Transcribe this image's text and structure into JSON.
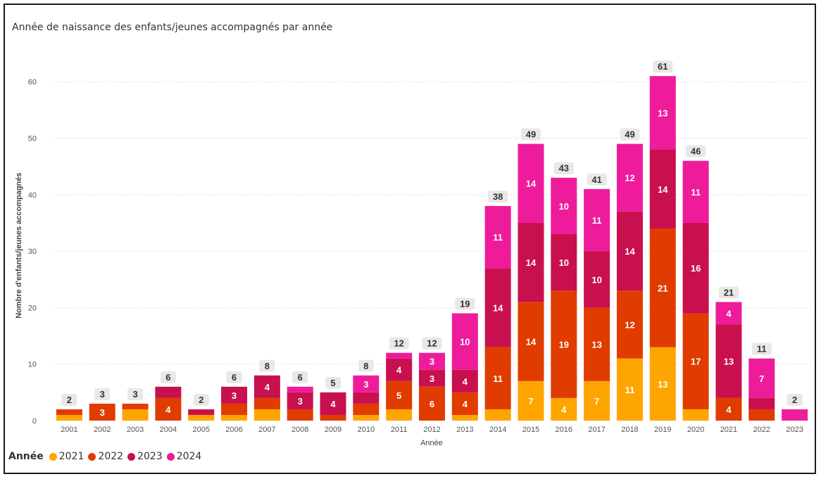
{
  "chart_data": {
    "type": "bar",
    "stacked": true,
    "title": "Année de naissance des enfants/jeunes accompagnés par année",
    "xlabel": "Année",
    "ylabel": "Nombre d'enfants/jeunes accompagnés",
    "ylim": [
      0,
      63
    ],
    "yticks": [
      "0",
      "10",
      "20",
      "30",
      "40",
      "50",
      "60"
    ],
    "grid": true,
    "legend_title": "Année",
    "legend_position": "bottom-left",
    "categories": [
      "2001",
      "2002",
      "2003",
      "2004",
      "2005",
      "2006",
      "2007",
      "2008",
      "2009",
      "2010",
      "2011",
      "2012",
      "2013",
      "2014",
      "2015",
      "2016",
      "2017",
      "2018",
      "2019",
      "2020",
      "2021",
      "2022",
      "2023"
    ],
    "series": [
      {
        "name": "2021",
        "color": "#FFA500",
        "values": [
          1,
          0,
          2,
          0,
          1,
          1,
          2,
          0,
          0,
          1,
          2,
          0,
          1,
          2,
          7,
          4,
          7,
          11,
          13,
          2,
          0,
          0,
          0
        ]
      },
      {
        "name": "2022",
        "color": "#E03C00",
        "values": [
          1,
          3,
          1,
          4,
          0,
          2,
          2,
          2,
          1,
          2,
          5,
          6,
          4,
          11,
          14,
          19,
          13,
          12,
          21,
          17,
          4,
          2,
          0
        ]
      },
      {
        "name": "2023",
        "color": "#C8104F",
        "values": [
          0,
          0,
          0,
          2,
          1,
          3,
          4,
          3,
          4,
          2,
          4,
          3,
          4,
          14,
          14,
          10,
          10,
          14,
          14,
          16,
          13,
          2,
          0
        ]
      },
      {
        "name": "2024",
        "color": "#EE1C9B",
        "values": [
          0,
          0,
          0,
          0,
          0,
          0,
          0,
          1,
          0,
          3,
          1,
          3,
          10,
          11,
          14,
          10,
          11,
          12,
          13,
          11,
          4,
          7,
          2
        ]
      }
    ],
    "segment_labels": [
      [
        "",
        "",
        "",
        "",
        "",
        "",
        "",
        "",
        "",
        "",
        "",
        "",
        "",
        "",
        "7",
        "4",
        "7",
        "11",
        "13",
        "",
        "",
        "",
        ""
      ],
      [
        "",
        "3",
        "",
        "4",
        "",
        "",
        "",
        "",
        "",
        "",
        "5",
        "6",
        "4",
        "11",
        "14",
        "19",
        "13",
        "12",
        "21",
        "17",
        "4",
        "",
        ""
      ],
      [
        "",
        "",
        "",
        "",
        "",
        "3",
        "4",
        "3",
        "4",
        "",
        "4",
        "3",
        "4",
        "14",
        "14",
        "10",
        "10",
        "14",
        "14",
        "16",
        "13",
        "",
        ""
      ],
      [
        "",
        "",
        "",
        "",
        "",
        "",
        "",
        "",
        "",
        "3",
        "",
        "3",
        "10",
        "11",
        "14",
        "10",
        "11",
        "12",
        "13",
        "11",
        "4",
        "7",
        ""
      ]
    ],
    "totals": [
      "2",
      "3",
      "3",
      "6",
      "2",
      "6",
      "8",
      "6",
      "5",
      "8",
      "12",
      "12",
      "19",
      "38",
      "49",
      "43",
      "41",
      "49",
      "61",
      "46",
      "21",
      "11",
      "2"
    ]
  }
}
